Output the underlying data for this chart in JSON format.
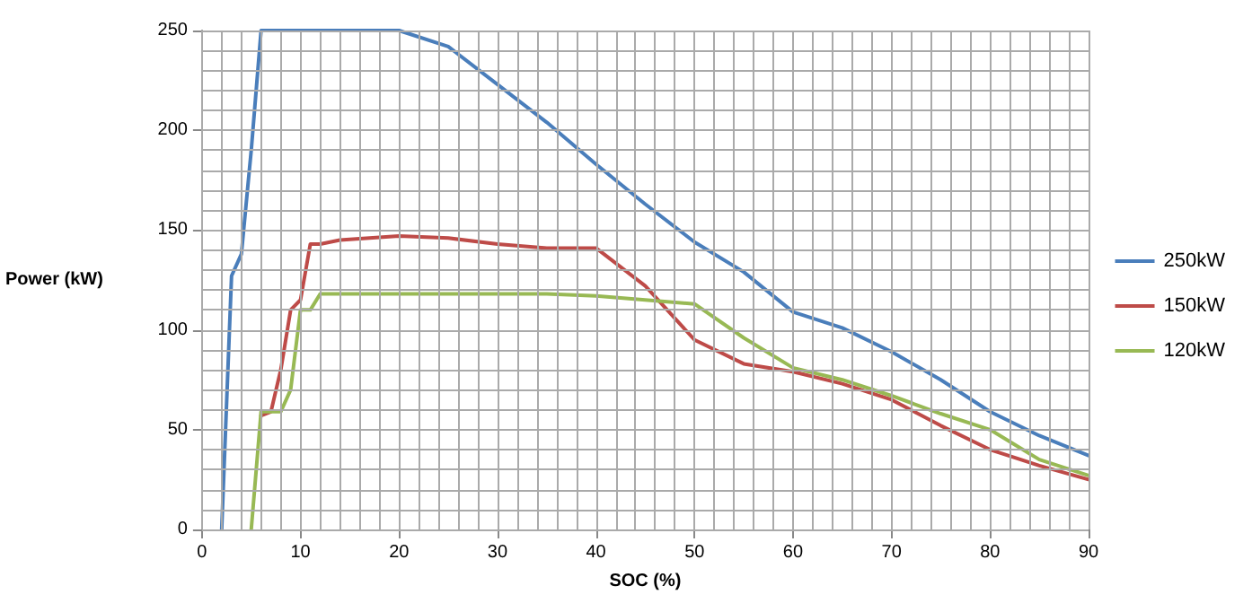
{
  "chart_data": {
    "type": "line",
    "xlabel": "SOC (%)",
    "ylabel": "Power (kW)",
    "xlim": [
      0,
      90
    ],
    "xticks": [
      0,
      10,
      20,
      30,
      40,
      50,
      60,
      70,
      80,
      90
    ],
    "ylim": [
      0,
      250
    ],
    "yticks": [
      0,
      50,
      100,
      150,
      200,
      250
    ],
    "grid": true,
    "legend": "right",
    "marker": "none",
    "line_style": "solid",
    "series": [
      {
        "name": "250kW",
        "color": "#4a7ebb",
        "x": [
          2,
          3,
          4,
          5,
          6,
          20,
          25,
          30,
          35,
          40,
          45,
          50,
          55,
          60,
          65,
          70,
          75,
          80,
          85,
          90
        ],
        "values": [
          0,
          127,
          138,
          190,
          250,
          250,
          242,
          223,
          204,
          183,
          163,
          144,
          129,
          109,
          101,
          89,
          75,
          59,
          47,
          37
        ]
      },
      {
        "name": "150kW",
        "color": "#be4b48",
        "x": [
          6,
          7,
          8,
          9,
          10,
          11,
          12,
          14,
          20,
          25,
          30,
          35,
          40,
          45,
          50,
          55,
          60,
          65,
          70,
          75,
          80,
          85,
          90
        ],
        "values": [
          57,
          59,
          80,
          110,
          115,
          143,
          143,
          145,
          147,
          146,
          143,
          141,
          141,
          122,
          95,
          83,
          79,
          73,
          65,
          52,
          40,
          32,
          25
        ]
      },
      {
        "name": "120kW",
        "color": "#98b954",
        "x": [
          5,
          6,
          7,
          8,
          9,
          10,
          11,
          12,
          20,
          30,
          35,
          40,
          45,
          50,
          55,
          60,
          65,
          70,
          75,
          80,
          85,
          90
        ],
        "values": [
          0,
          59,
          59,
          59,
          70,
          110,
          110,
          118,
          118,
          118,
          118,
          117,
          115,
          113,
          96,
          81,
          75,
          67,
          58,
          50,
          35,
          27
        ]
      }
    ]
  }
}
